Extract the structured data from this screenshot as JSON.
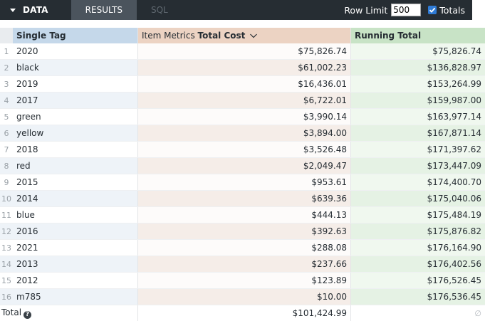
{
  "toolbar": {
    "data_label": "DATA",
    "tabs": [
      {
        "label": "RESULTS",
        "active": true
      },
      {
        "label": "SQL",
        "active": false
      }
    ],
    "row_limit_label": "Row Limit",
    "row_limit_value": "500",
    "totals_label": "Totals",
    "totals_checked": true
  },
  "table": {
    "headers": {
      "tag": "Single Tag",
      "cost_prefix": "Item Metrics ",
      "cost_strong": "Total Cost",
      "running": "Running Total"
    },
    "rows": [
      {
        "n": "1",
        "tag": "2020",
        "cost": "$75,826.74",
        "running": "$75,826.74"
      },
      {
        "n": "2",
        "tag": "black",
        "cost": "$61,002.23",
        "running": "$136,828.97"
      },
      {
        "n": "3",
        "tag": "2019",
        "cost": "$16,436.01",
        "running": "$153,264.99"
      },
      {
        "n": "4",
        "tag": "2017",
        "cost": "$6,722.01",
        "running": "$159,987.00"
      },
      {
        "n": "5",
        "tag": "green",
        "cost": "$3,990.14",
        "running": "$163,977.14"
      },
      {
        "n": "6",
        "tag": "yellow",
        "cost": "$3,894.00",
        "running": "$167,871.14"
      },
      {
        "n": "7",
        "tag": "2018",
        "cost": "$3,526.48",
        "running": "$171,397.62"
      },
      {
        "n": "8",
        "tag": "red",
        "cost": "$2,049.47",
        "running": "$173,447.09"
      },
      {
        "n": "9",
        "tag": "2015",
        "cost": "$953.61",
        "running": "$174,400.70"
      },
      {
        "n": "10",
        "tag": "2014",
        "cost": "$639.36",
        "running": "$175,040.06"
      },
      {
        "n": "11",
        "tag": "blue",
        "cost": "$444.13",
        "running": "$175,484.19"
      },
      {
        "n": "12",
        "tag": "2016",
        "cost": "$392.63",
        "running": "$175,876.82"
      },
      {
        "n": "13",
        "tag": "2021",
        "cost": "$288.08",
        "running": "$176,164.90"
      },
      {
        "n": "14",
        "tag": "2013",
        "cost": "$237.66",
        "running": "$176,402.56"
      },
      {
        "n": "15",
        "tag": "2012",
        "cost": "$123.89",
        "running": "$176,526.45"
      },
      {
        "n": "16",
        "tag": "m785",
        "cost": "$10.00",
        "running": "$176,536.45"
      }
    ],
    "total": {
      "label": "Total",
      "cost": "$101,424.99",
      "running": "∅"
    }
  },
  "colors": {
    "toolbar_bg": "#262d33",
    "dimension_header": "#c5d8ea",
    "measure_header": "#ecd3c3",
    "table_calc_header": "#c8e3c6"
  },
  "icons": {
    "caret": "caret-down-icon",
    "sort": "chevron-down-icon",
    "help": "question-circle-icon",
    "checkbox": "checkbox-checked-icon"
  }
}
